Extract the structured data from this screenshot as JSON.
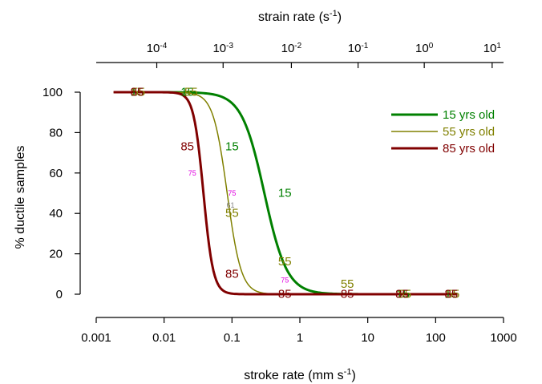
{
  "chart_data": {
    "type": "line",
    "xlabel": "stroke rate  (mm s-1)",
    "xlabel_main": "stroke rate  (mm s",
    "xlabel_sup": "-1",
    "xlabel_tail": ")",
    "x2label": "strain rate (s-1)",
    "x2label_main": "strain rate (s",
    "x2label_sup": "-1",
    "x2label_tail": ")",
    "ylabel": "% ductile samples",
    "xscale": "log",
    "xlim": [
      0.001,
      1000
    ],
    "ylim": [
      -5,
      100
    ],
    "x_ticks": [
      {
        "v": 0.001,
        "label": "0.001"
      },
      {
        "v": 0.01,
        "label": "0.01"
      },
      {
        "v": 0.1,
        "label": "0.1"
      },
      {
        "v": 1,
        "label": "1"
      },
      {
        "v": 10,
        "label": "10"
      },
      {
        "v": 100,
        "label": "100"
      },
      {
        "v": 1000,
        "label": "1000"
      }
    ],
    "y_ticks": [
      0,
      20,
      40,
      60,
      80,
      100
    ],
    "x2_ticks": [
      {
        "x": 0.0078,
        "base": "10",
        "exp": "-4"
      },
      {
        "x": 0.074,
        "base": "10",
        "exp": "-3"
      },
      {
        "x": 0.75,
        "base": "10",
        "exp": "-2"
      },
      {
        "x": 7.2,
        "base": "10",
        "exp": "-1"
      },
      {
        "x": 68,
        "base": "10",
        "exp": "0"
      },
      {
        "x": 680,
        "base": "10",
        "exp": "1"
      }
    ],
    "legend_position": "top-right",
    "series": [
      {
        "name": "15 yrs old",
        "label": "15",
        "color": "#008000",
        "width": 3,
        "x50": 0.3,
        "slope": 2.6,
        "xmin": 0.0045,
        "xmax": 200
      },
      {
        "name": "55 yrs old",
        "label": "55",
        "color": "#808000",
        "width": 1.5,
        "x50": 0.085,
        "slope": 4.2,
        "xmin": 0.0018,
        "xmax": 200
      },
      {
        "name": "85 yrs old",
        "label": "85",
        "color": "#800000",
        "width": 3,
        "x50": 0.038,
        "slope": 6.0,
        "xmin": 0.0018,
        "xmax": 200
      }
    ],
    "markers": [
      {
        "text": "15",
        "x": 0.004,
        "y": 100,
        "color": "#008000",
        "size": 15
      },
      {
        "text": "15",
        "x": 0.022,
        "y": 100,
        "color": "#008000",
        "size": 15
      },
      {
        "text": "15",
        "x": 0.1,
        "y": 73,
        "color": "#008000",
        "size": 15
      },
      {
        "text": "15",
        "x": 0.6,
        "y": 50,
        "color": "#008000",
        "size": 15
      },
      {
        "text": "15",
        "x": 33,
        "y": 0,
        "color": "#008000",
        "size": 15
      },
      {
        "text": "15",
        "x": 170,
        "y": 0,
        "color": "#008000",
        "size": 15
      },
      {
        "text": "55",
        "x": 0.0042,
        "y": 100,
        "color": "#808000",
        "size": 15
      },
      {
        "text": "55",
        "x": 0.025,
        "y": 100,
        "color": "#808000",
        "size": 15
      },
      {
        "text": "55",
        "x": 0.1,
        "y": 40,
        "color": "#808000",
        "size": 15
      },
      {
        "text": "55",
        "x": 0.6,
        "y": 16,
        "color": "#808000",
        "size": 15
      },
      {
        "text": "55",
        "x": 5,
        "y": 5,
        "color": "#808000",
        "size": 15
      },
      {
        "text": "55",
        "x": 35,
        "y": 0,
        "color": "#808000",
        "size": 15
      },
      {
        "text": "55",
        "x": 180,
        "y": 0,
        "color": "#808000",
        "size": 15
      },
      {
        "text": "85",
        "x": 0.004,
        "y": 100,
        "color": "#800000",
        "size": 15
      },
      {
        "text": "85",
        "x": 0.022,
        "y": 73,
        "color": "#800000",
        "size": 15
      },
      {
        "text": "85",
        "x": 0.1,
        "y": 10,
        "color": "#800000",
        "size": 15
      },
      {
        "text": "85",
        "x": 0.6,
        "y": 0,
        "color": "#800000",
        "size": 15
      },
      {
        "text": "85",
        "x": 5,
        "y": 0,
        "color": "#800000",
        "size": 15
      },
      {
        "text": "85",
        "x": 32,
        "y": 0,
        "color": "#800000",
        "size": 15
      },
      {
        "text": "85",
        "x": 170,
        "y": 0,
        "color": "#800000",
        "size": 15
      },
      {
        "text": "75",
        "x": 0.026,
        "y": 60,
        "color": "#e000e0",
        "size": 9
      },
      {
        "text": "75",
        "x": 0.1,
        "y": 50,
        "color": "#e000e0",
        "size": 9
      },
      {
        "text": "61",
        "x": 0.095,
        "y": 44,
        "color": "#808080",
        "size": 9
      },
      {
        "text": "75",
        "x": 0.6,
        "y": 7,
        "color": "#e000e0",
        "size": 9
      }
    ]
  }
}
